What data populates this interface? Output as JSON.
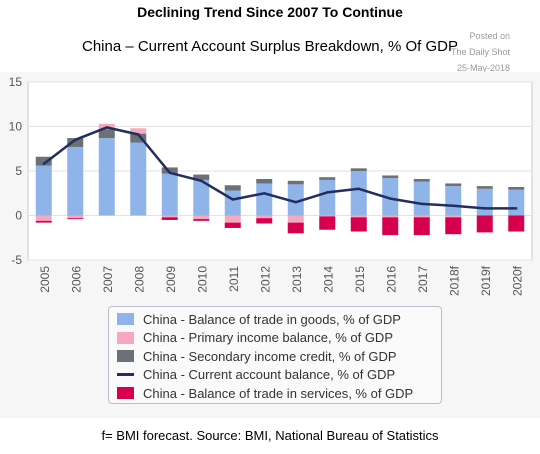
{
  "header": {
    "headline": "Declining Trend Since 2007 To Continue",
    "subtitle": "China – Current Account Surplus Breakdown, % Of GDP",
    "posted_on": "Posted on",
    "posted_via": "The Daily Shot",
    "posted_date": "25-May-2018"
  },
  "footer": "f= BMI forecast. Source: BMI, National Bureau of Statistics",
  "legend": [
    {
      "label": "China - Balance of trade in goods, % of GDP",
      "color": "#8fb4ea",
      "kind": "bar"
    },
    {
      "label": "China - Primary income balance, % of GDP",
      "color": "#f7a8bf",
      "kind": "bar"
    },
    {
      "label": "China - Secondary income credit, % of GDP",
      "color": "#6b7177",
      "kind": "bar"
    },
    {
      "label": "China - Current account balance, % of GDP",
      "color": "#232e5e",
      "kind": "line"
    },
    {
      "label": "China - Balance of trade in services, % of GDP",
      "color": "#d6004f",
      "kind": "bar"
    }
  ],
  "chart_data": {
    "type": "bar",
    "categories": [
      "2005",
      "2006",
      "2007",
      "2008",
      "2009",
      "2010",
      "2011",
      "2012",
      "2013",
      "2014",
      "2015",
      "2016",
      "2017",
      "2018f",
      "2019f",
      "2020f"
    ],
    "ylim": [
      -5,
      15
    ],
    "yticks": [
      -5,
      0,
      5,
      10,
      15
    ],
    "series": [
      {
        "name": "China - Balance of trade in goods, % of GDP",
        "kind": "bar",
        "color": "#8fb4ea",
        "values": [
          5.6,
          7.7,
          8.7,
          8.2,
          4.7,
          4.0,
          2.8,
          3.6,
          3.5,
          4.0,
          5.0,
          4.2,
          3.8,
          3.3,
          3.0,
          2.9
        ]
      },
      {
        "name": "China - Secondary income credit, % of GDP",
        "kind": "bar",
        "color": "#6b7177",
        "values": [
          1.0,
          1.0,
          1.0,
          1.0,
          0.7,
          0.6,
          0.6,
          0.5,
          0.4,
          0.3,
          0.3,
          0.3,
          0.3,
          0.3,
          0.3,
          0.3
        ]
      },
      {
        "name": "China - Primary income balance, % of GDP",
        "kind": "bar",
        "color": "#f7a8bf",
        "values": [
          -0.6,
          -0.3,
          0.6,
          0.6,
          -0.2,
          -0.4,
          -0.8,
          -0.3,
          -0.8,
          -0.1,
          -0.2,
          -0.2,
          -0.2,
          -0.2,
          0.0,
          0.0
        ]
      },
      {
        "name": "China - Balance of trade in services, % of GDP",
        "kind": "bar",
        "color": "#d6004f",
        "values": [
          -0.2,
          -0.1,
          0.0,
          0.0,
          -0.3,
          -0.2,
          -0.6,
          -0.6,
          -1.2,
          -1.5,
          -1.6,
          -2.0,
          -2.0,
          -1.9,
          -1.9,
          -1.8
        ]
      },
      {
        "name": "China - Current account balance, % of GDP",
        "kind": "line",
        "color": "#232e5e",
        "values": [
          5.8,
          8.5,
          9.9,
          9.1,
          4.8,
          3.9,
          1.8,
          2.5,
          1.5,
          2.6,
          3.0,
          1.9,
          1.3,
          1.1,
          0.8,
          0.8
        ]
      }
    ]
  }
}
